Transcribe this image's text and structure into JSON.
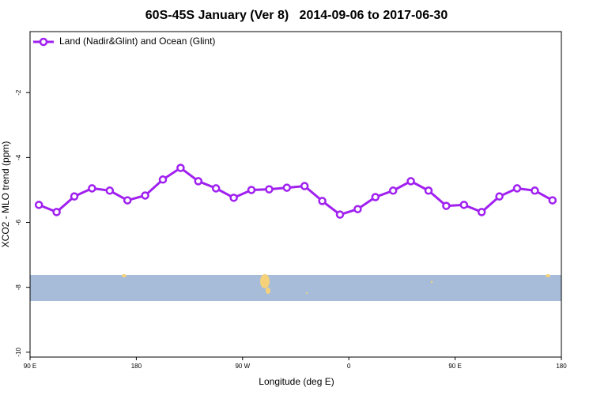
{
  "chart_data": {
    "type": "line",
    "title": "60S-45S January (Ver 8)   2014-09-06 to 2017-06-30",
    "xlabel": "Longitude (deg E)",
    "ylabel": "XCO2 - MLO trend (ppm)",
    "x": [
      97.5,
      112.5,
      127.5,
      142.5,
      157.5,
      172.5,
      187.5,
      202.5,
      217.5,
      232.5,
      247.5,
      262.5,
      277.5,
      292.5,
      307.5,
      322.5,
      337.5,
      352.5,
      367.5,
      382.5,
      397.5,
      412.5,
      427.5,
      442.5,
      457.5,
      472.5,
      487.5,
      502.5,
      517.5,
      532.5
    ],
    "series": [
      {
        "name": "Land (Nadir&Glint) and Ocean (Glint)",
        "color": "#a020f0",
        "values": [
          -5.46,
          -5.68,
          -5.2,
          -4.95,
          -5.02,
          -5.32,
          -5.17,
          -4.68,
          -4.32,
          -4.73,
          -4.95,
          -5.24,
          -5.0,
          -4.98,
          -4.93,
          -4.88,
          -5.34,
          -5.76,
          -5.59,
          -5.22,
          -5.02,
          -4.73,
          -5.02,
          -5.49,
          -5.46,
          -5.68,
          -5.2,
          -4.95,
          -5.02,
          -5.32
        ]
      }
    ],
    "xlim": [
      90,
      540
    ],
    "xticks": [
      {
        "value": 90,
        "label": "90 E"
      },
      {
        "value": 180,
        "label": "180"
      },
      {
        "value": 270,
        "label": "90 W"
      },
      {
        "value": 360,
        "label": "0"
      },
      {
        "value": 450,
        "label": "90 E"
      },
      {
        "value": 540,
        "label": "180"
      }
    ],
    "ylim": [
      -10.15,
      -0.12
    ],
    "yticks": [
      -10,
      -8,
      -6,
      -4,
      -2
    ],
    "legend": "top-left"
  }
}
